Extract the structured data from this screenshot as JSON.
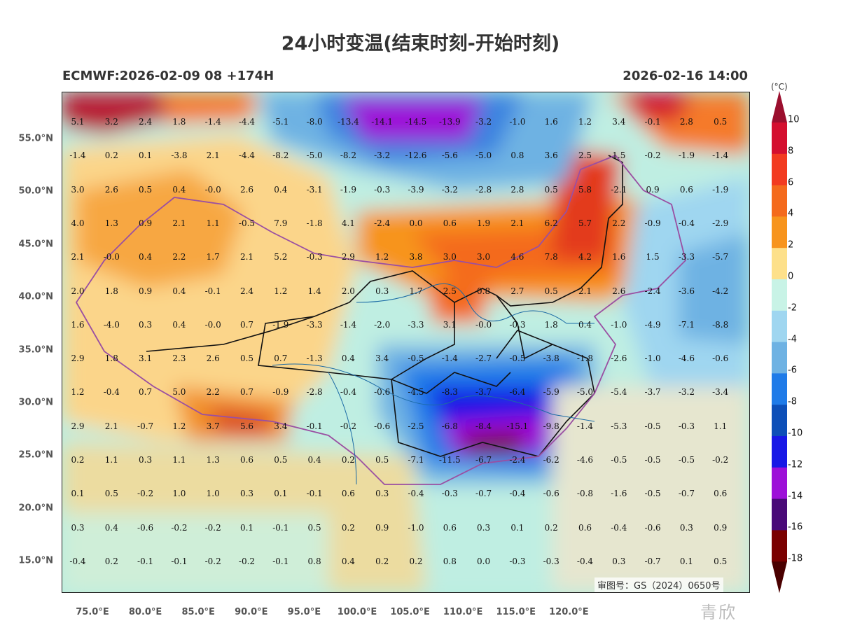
{
  "title": "24小时变温(结束时刻-开始时刻)",
  "model_info": "ECMWF:2026-02-09 08 +174H",
  "valid_time": "2026-02-16 14:00",
  "unit": "(°C)",
  "approval": "审图号：GS（2024）0650号",
  "watermark": "青欣",
  "lat_labels": [
    "55.0°N",
    "50.0°N",
    "45.0°N",
    "40.0°N",
    "35.0°N",
    "30.0°N",
    "25.0°N",
    "20.0°N",
    "15.0°N"
  ],
  "lon_labels": [
    "75.0°E",
    "80.0°E",
    "85.0°E",
    "90.0°E",
    "95.0°E",
    "100.0°E",
    "105.0°E",
    "110.0°E",
    "115.0°E",
    "120.0°E"
  ],
  "colorbar_labels": [
    "10",
    "8",
    "6",
    "4",
    "2",
    "0",
    "-2",
    "-4",
    "-6",
    "-8",
    "-10",
    "-12",
    "-14",
    "-16",
    "-18"
  ],
  "colorbar_colors": [
    "#9b0f2e",
    "#d40f2f",
    "#f23b20",
    "#f46a1c",
    "#f7941d",
    "#fde08a",
    "#c8f3e6",
    "#9fd6f0",
    "#6eb2e3",
    "#1f7be8",
    "#0d4fb8",
    "#1818e6",
    "#9d10d8",
    "#4a0a78",
    "#7a0000",
    "#4a0000"
  ],
  "grid_values": [
    [
      "5.1",
      "3.2",
      "2.4",
      "1.8",
      "-1.4",
      "-4.4",
      "-5.1",
      "-8.0",
      "-13.4",
      "-14.1",
      "-14.5",
      "-13.9",
      "-3.2",
      "-1.0",
      "1.6",
      "1.2",
      "3.4",
      "-0.1",
      "2.8",
      "0.5"
    ],
    [
      "-1.4",
      "0.2",
      "0.1",
      "-3.8",
      "2.1",
      "-4.4",
      "-8.2",
      "-5.0",
      "-8.2",
      "-3.2",
      "-12.6",
      "-5.6",
      "-5.0",
      "0.8",
      "3.6",
      "2.5",
      "1.5",
      "-0.2",
      "-1.9",
      "-1.4"
    ],
    [
      "3.0",
      "2.6",
      "0.5",
      "0.4",
      "-0.0",
      "2.6",
      "0.4",
      "-3.1",
      "-1.9",
      "-0.3",
      "-3.9",
      "-3.2",
      "-2.8",
      "2.8",
      "0.5",
      "5.8",
      "-2.1",
      "0.9",
      "0.6",
      "-1.9"
    ],
    [
      "4.0",
      "1.3",
      "0.9",
      "2.1",
      "1.1",
      "-0.5",
      "7.9",
      "-1.8",
      "4.1",
      "-2.4",
      "0.0",
      "0.6",
      "1.9",
      "2.1",
      "6.2",
      "5.7",
      "2.2",
      "-0.9",
      "-0.4",
      "-2.9"
    ],
    [
      "2.1",
      "-0.0",
      "0.4",
      "2.2",
      "1.7",
      "2.1",
      "5.2",
      "-0.3",
      "2.9",
      "1.2",
      "3.8",
      "3.0",
      "3.0",
      "4.6",
      "7.8",
      "4.2",
      "1.6",
      "1.5",
      "-3.3",
      "-5.7"
    ],
    [
      "2.0",
      "1.8",
      "0.9",
      "0.4",
      "-0.1",
      "2.4",
      "1.2",
      "1.4",
      "2.0",
      "0.3",
      "1.7",
      "2.5",
      "0.8",
      "2.7",
      "0.5",
      "2.1",
      "2.6",
      "-2.4",
      "-3.6",
      "-4.2"
    ],
    [
      "1.6",
      "-4.0",
      "0.3",
      "0.4",
      "-0.0",
      "0.7",
      "-1.9",
      "-3.3",
      "-1.4",
      "-2.0",
      "-3.3",
      "3.1",
      "-0.0",
      "-0.3",
      "1.8",
      "0.4",
      "-1.0",
      "-4.9",
      "-7.1",
      "-8.8"
    ],
    [
      "2.9",
      "1.8",
      "3.1",
      "2.3",
      "2.6",
      "0.5",
      "0.7",
      "-1.3",
      "0.4",
      "3.4",
      "-0.5",
      "-1.4",
      "-2.7",
      "-0.5",
      "-3.8",
      "-1.8",
      "-2.6",
      "-1.0",
      "-4.6",
      "-0.6"
    ],
    [
      "1.2",
      "-0.4",
      "0.7",
      "5.0",
      "2.2",
      "0.7",
      "-0.9",
      "-2.8",
      "-0.4",
      "-0.6",
      "-4.5",
      "-8.3",
      "-3.7",
      "-6.4",
      "-5.9",
      "-5.0",
      "-5.4",
      "-3.7",
      "-3.2",
      "-3.4"
    ],
    [
      "2.9",
      "2.1",
      "-0.7",
      "1.2",
      "3.7",
      "5.6",
      "3.4",
      "-0.1",
      "-0.2",
      "-0.6",
      "-2.5",
      "-6.8",
      "-8.4",
      "-15.1",
      "-9.8",
      "-1.4",
      "-5.3",
      "-0.5",
      "-0.3",
      "1.1"
    ],
    [
      "0.2",
      "1.1",
      "0.3",
      "1.1",
      "1.3",
      "0.6",
      "0.5",
      "0.4",
      "0.2",
      "0.5",
      "-7.1",
      "-11.5",
      "-6.7",
      "-2.4",
      "-6.2",
      "-4.6",
      "-0.5",
      "-0.5",
      "-0.5",
      "-0.2"
    ],
    [
      "0.1",
      "0.5",
      "-0.2",
      "1.0",
      "1.0",
      "0.3",
      "0.1",
      "-0.1",
      "0.6",
      "0.3",
      "-0.4",
      "-0.3",
      "-0.7",
      "-0.4",
      "-0.6",
      "-0.8",
      "-1.6",
      "-0.5",
      "-0.7",
      "0.6"
    ],
    [
      "0.3",
      "0.4",
      "-0.6",
      "-0.2",
      "-0.2",
      "0.1",
      "-0.1",
      "0.5",
      "0.2",
      "0.9",
      "-1.0",
      "0.6",
      "0.3",
      "0.1",
      "0.2",
      "0.6",
      "-0.4",
      "-0.6",
      "0.3",
      "0.9"
    ],
    [
      "-0.4",
      "0.2",
      "-0.1",
      "-0.1",
      "-0.2",
      "-0.2",
      "-0.1",
      "0.8",
      "0.4",
      "0.2",
      "0.2",
      "0.8",
      "0.0",
      "-0.3",
      "-0.3",
      "-0.4",
      "0.3",
      "-0.7",
      "0.1",
      "0.5"
    ]
  ]
}
